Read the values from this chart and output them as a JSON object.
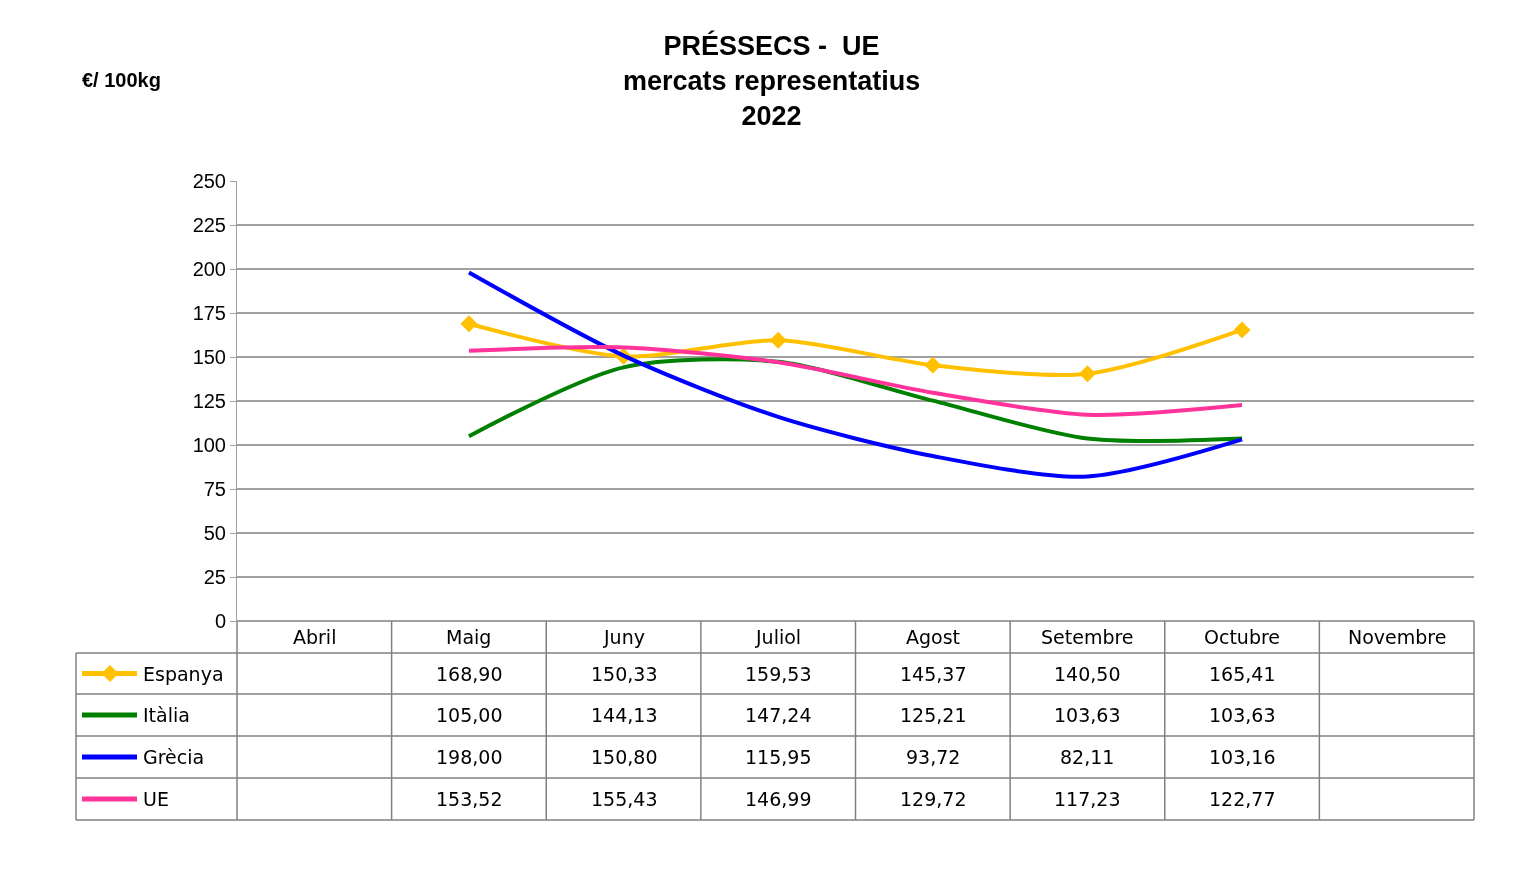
{
  "chart_data": {
    "type": "line",
    "title": "PRÉSSECS -  UE\nmercats representatius\n2022",
    "ylabel": "€/ 100kg",
    "categories": [
      "Abril",
      "Maig",
      "Juny",
      "Juliol",
      "Agost",
      "Setembre",
      "Octubre",
      "Novembre"
    ],
    "series": [
      {
        "name": "Espanya",
        "color": "#ffc000",
        "marker": "diamond",
        "values": [
          null,
          168.9,
          150.33,
          159.53,
          145.37,
          140.5,
          165.41,
          null
        ],
        "value_labels": [
          null,
          "168,90",
          "150,33",
          "159,53",
          "145,37",
          "140,50",
          "165,41",
          null
        ]
      },
      {
        "name": "Itàlia",
        "color": "#008000",
        "marker": "none",
        "values": [
          null,
          105.0,
          144.13,
          147.24,
          125.21,
          103.63,
          103.63,
          null
        ],
        "value_labels": [
          null,
          "105,00",
          "144,13",
          "147,24",
          "125,21",
          "103,63",
          "103,63",
          null
        ]
      },
      {
        "name": "Grècia",
        "color": "#0000ff",
        "marker": "none",
        "values": [
          null,
          198.0,
          150.8,
          115.95,
          93.72,
          82.11,
          103.16,
          null
        ],
        "value_labels": [
          null,
          "198,00",
          "150,80",
          "115,95",
          "93,72",
          "82,11",
          "103,16",
          null
        ]
      },
      {
        "name": "UE",
        "color": "#ff3399",
        "marker": "none",
        "values": [
          null,
          153.52,
          155.43,
          146.99,
          129.72,
          117.23,
          122.77,
          null
        ],
        "value_labels": [
          null,
          "153,52",
          "155,43",
          "146,99",
          "129,72",
          "117,23",
          "122,77",
          null
        ]
      }
    ],
    "ylim": [
      0,
      250
    ],
    "yticks": [
      0,
      25,
      50,
      75,
      100,
      125,
      150,
      175,
      200,
      225,
      250
    ],
    "grid": "y",
    "legend": "bottom left",
    "line_style": "solid"
  }
}
